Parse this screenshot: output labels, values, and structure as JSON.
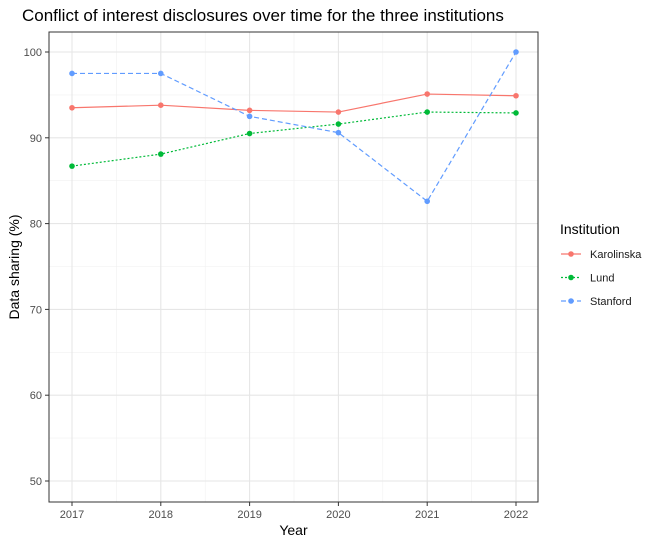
{
  "chart_data": {
    "type": "line",
    "title": "Conflict of interest disclosures over time for the three institutions",
    "xlabel": "Year",
    "ylabel": "Data sharing (%)",
    "x": [
      2017,
      2018,
      2019,
      2020,
      2021,
      2022
    ],
    "x_tick_labels": [
      "2017",
      "2018",
      "2019",
      "2020",
      "2021",
      "2022"
    ],
    "ylim": [
      50,
      100
    ],
    "y_ticks": [
      50,
      60,
      70,
      80,
      90,
      100
    ],
    "y_tick_labels": [
      "50",
      "60",
      "70",
      "80",
      "90",
      "100"
    ],
    "grid": true,
    "legend": {
      "title": "Institution",
      "position": "right"
    },
    "series": [
      {
        "name": "Karolinska",
        "color": "#F8766D",
        "dash": "solid",
        "values": [
          93.5,
          93.8,
          93.2,
          93.0,
          95.1,
          94.9
        ]
      },
      {
        "name": "Lund",
        "color": "#00BA38",
        "dash": "dotted",
        "values": [
          86.7,
          88.1,
          90.5,
          91.6,
          93.0,
          92.9
        ]
      },
      {
        "name": "Stanford",
        "color": "#619CFF",
        "dash": "dashed",
        "values": [
          97.5,
          97.5,
          92.5,
          90.6,
          82.6,
          100.0
        ]
      }
    ]
  }
}
